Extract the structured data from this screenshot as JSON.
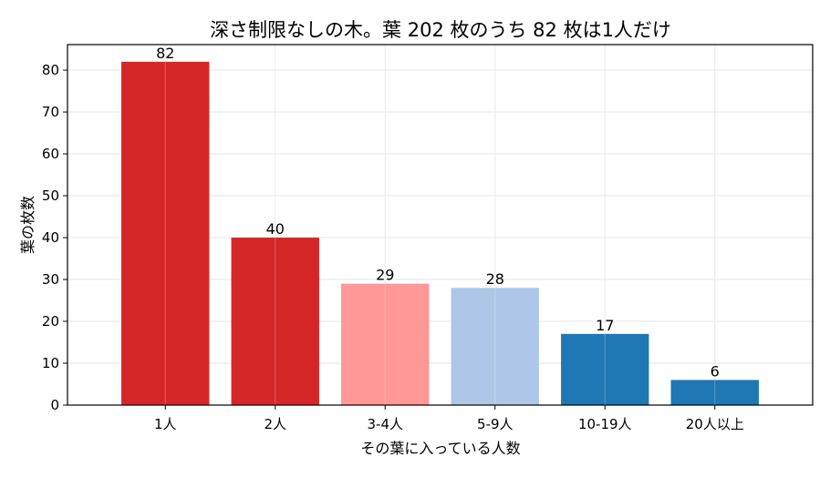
{
  "chart_data": {
    "type": "bar",
    "title": "深さ制限なしの木。葉 202 枚のうち 82 枚は1人だけ",
    "xlabel": "その葉に入っている人数",
    "ylabel": "葉の枚数",
    "categories": [
      "1人",
      "2人",
      "3-4人",
      "5-9人",
      "10-19人",
      "20人以上"
    ],
    "values": [
      82,
      40,
      29,
      28,
      17,
      6
    ],
    "data_labels": [
      "82",
      "40",
      "29",
      "28",
      "17",
      "6"
    ],
    "bar_colors": [
      "#d62728",
      "#d62728",
      "#ff9896",
      "#aec7e8",
      "#1f77b4",
      "#1f77b4"
    ],
    "ylim": [
      0,
      86.1
    ],
    "yticks": [
      0,
      10,
      20,
      30,
      40,
      50,
      60,
      70,
      80
    ],
    "grid": true,
    "grid_color": "#e6e6e6"
  }
}
